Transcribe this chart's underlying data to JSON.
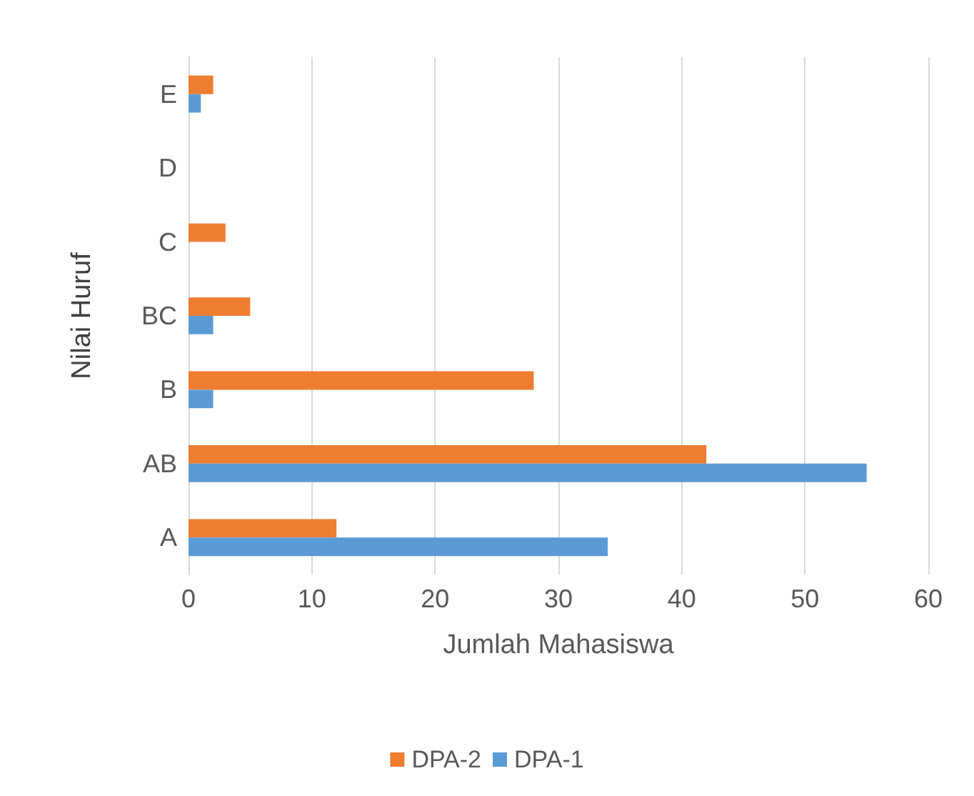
{
  "chart_data": {
    "type": "bar",
    "orientation": "horizontal",
    "xlabel": "Jumlah Mahasiswa",
    "ylabel": "Nilai Huruf",
    "categories": [
      "E",
      "D",
      "C",
      "BC",
      "B",
      "AB",
      "A"
    ],
    "series": [
      {
        "name": "DPA-2",
        "color": "#ed7d31",
        "values": [
          2,
          0,
          3,
          5,
          28,
          42,
          12
        ]
      },
      {
        "name": "DPA-1",
        "color": "#5b9bd5",
        "values": [
          1,
          0,
          0,
          2,
          2,
          55,
          34
        ]
      }
    ],
    "xlim": [
      0,
      60
    ],
    "xticks": [
      0,
      10,
      20,
      30,
      40,
      50,
      60
    ],
    "grid": "x",
    "legend": "bottom"
  }
}
